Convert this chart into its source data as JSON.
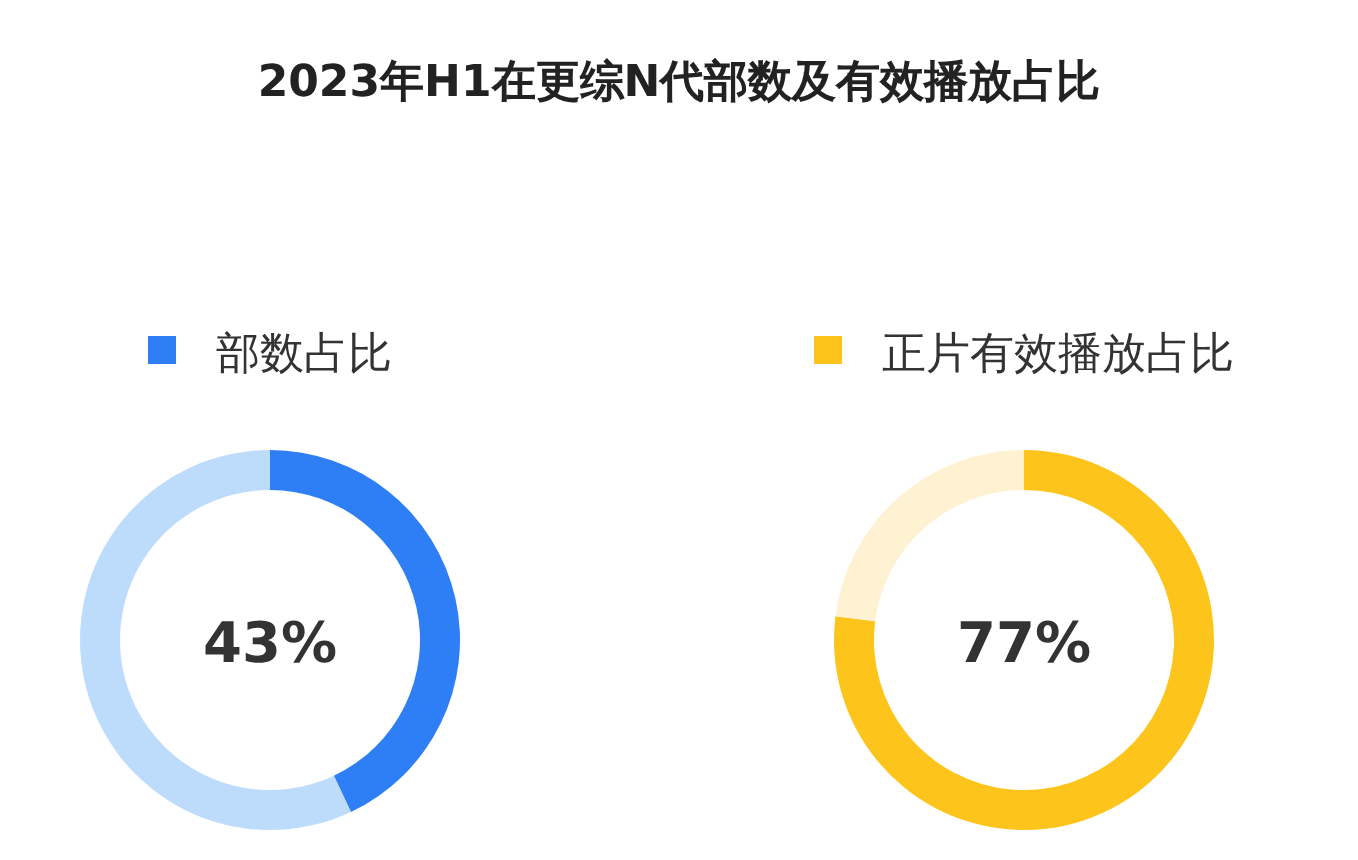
{
  "chart_data": [
    {
      "type": "donut",
      "title": "2023年H1在更综N代部数及有效播放占比",
      "categories": [
        "部数占比",
        null
      ],
      "values": [
        43,
        57
      ],
      "colors": [
        "#2e7ff5",
        "#bddcfb"
      ],
      "annotations": [
        "43%"
      ],
      "legend": "top"
    },
    {
      "type": "donut",
      "categories": [
        "正片有效播放占比",
        null
      ],
      "values": [
        77,
        23
      ],
      "colors": [
        "#fdc51b",
        "#fff2d2"
      ],
      "annotations": [
        "77%"
      ],
      "legend": "top"
    }
  ]
}
